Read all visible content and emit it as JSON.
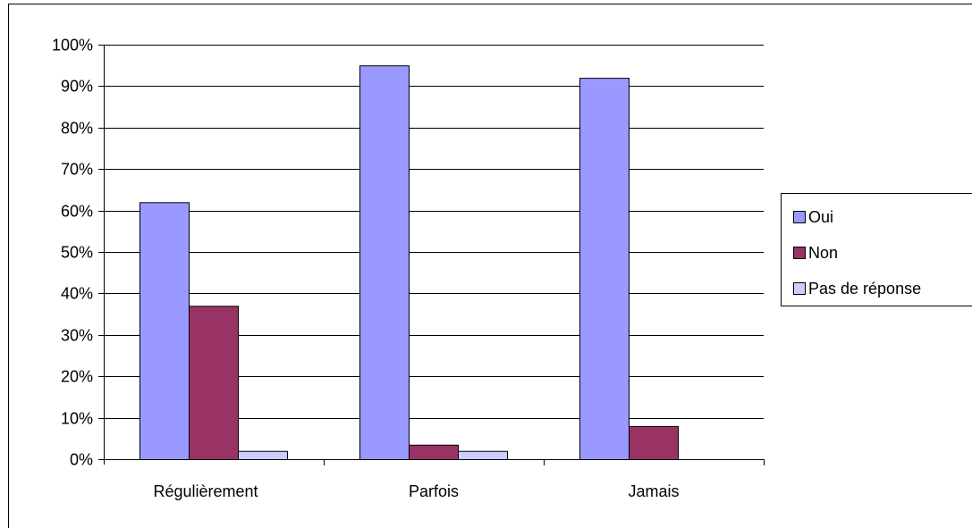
{
  "chart_data": {
    "type": "bar",
    "categories": [
      "Régulièrement",
      "Parfois",
      "Jamais"
    ],
    "series": [
      {
        "name": "Oui",
        "values": [
          62,
          95,
          92
        ],
        "color": "#9999ff"
      },
      {
        "name": "Non",
        "values": [
          37,
          3.5,
          8
        ],
        "color": "#993366"
      },
      {
        "name": "Pas de réponse",
        "values": [
          2,
          2,
          0
        ],
        "color": "#ccccff"
      }
    ],
    "ylim": [
      0,
      100
    ],
    "yticks": [
      "0%",
      "10%",
      "20%",
      "30%",
      "40%",
      "50%",
      "60%",
      "70%",
      "80%",
      "90%",
      "100%"
    ],
    "grid": true,
    "legend_position": "right"
  }
}
